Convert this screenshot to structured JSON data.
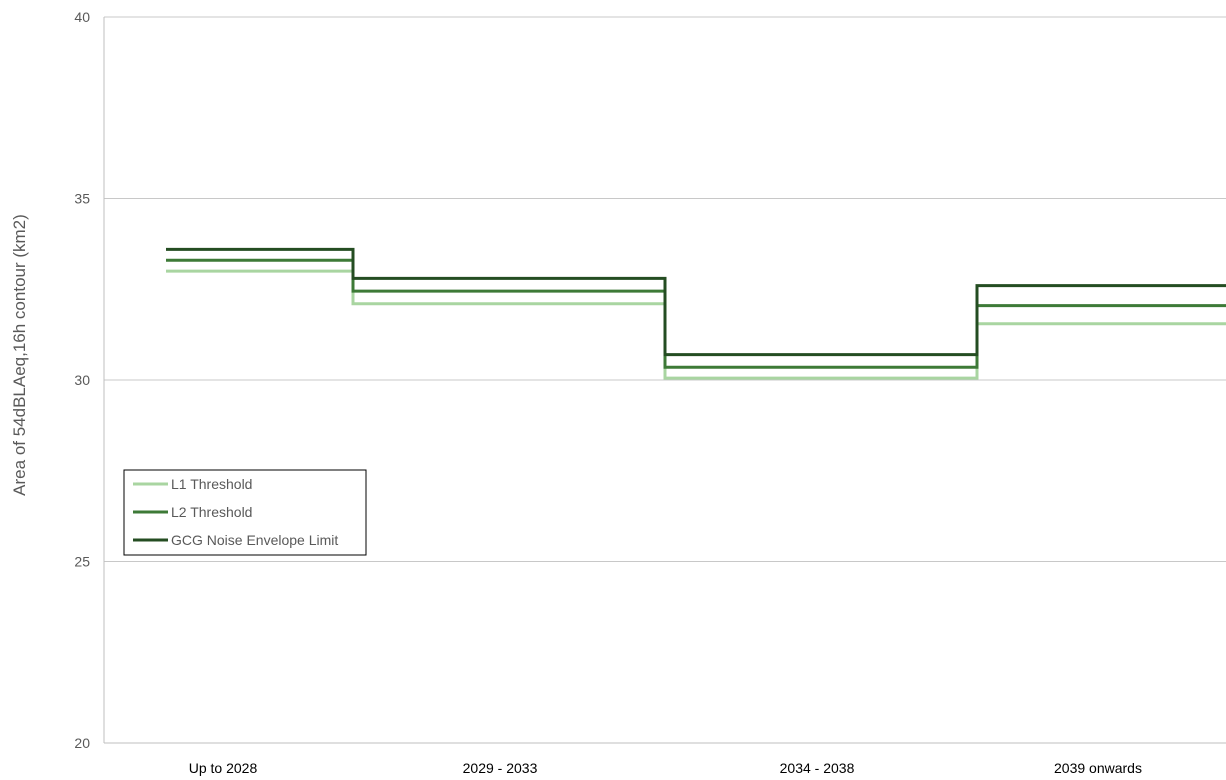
{
  "chart_data": {
    "type": "line",
    "step": true,
    "title": "",
    "xlabel": "",
    "ylabel": "Area of 54dBLAeq,16h contour (km2)",
    "categories": [
      "Up to 2028",
      "2029 - 2033",
      "2034 - 2038",
      "2039 onwards"
    ],
    "ylim": [
      20,
      40
    ],
    "yticks": [
      20,
      25,
      30,
      35,
      40
    ],
    "grid": true,
    "legend_position": "bottom-left",
    "series": [
      {
        "name": "L1 Threshold",
        "color": "#a9d5a1",
        "values": [
          33.0,
          32.1,
          30.05,
          31.55
        ]
      },
      {
        "name": "L2 Threshold",
        "color": "#3d7a37",
        "values": [
          33.3,
          32.45,
          30.35,
          32.05
        ]
      },
      {
        "name": "GCG Noise Envelope Limit",
        "color": "#244d22",
        "values": [
          33.6,
          32.8,
          30.7,
          32.6
        ]
      }
    ]
  }
}
